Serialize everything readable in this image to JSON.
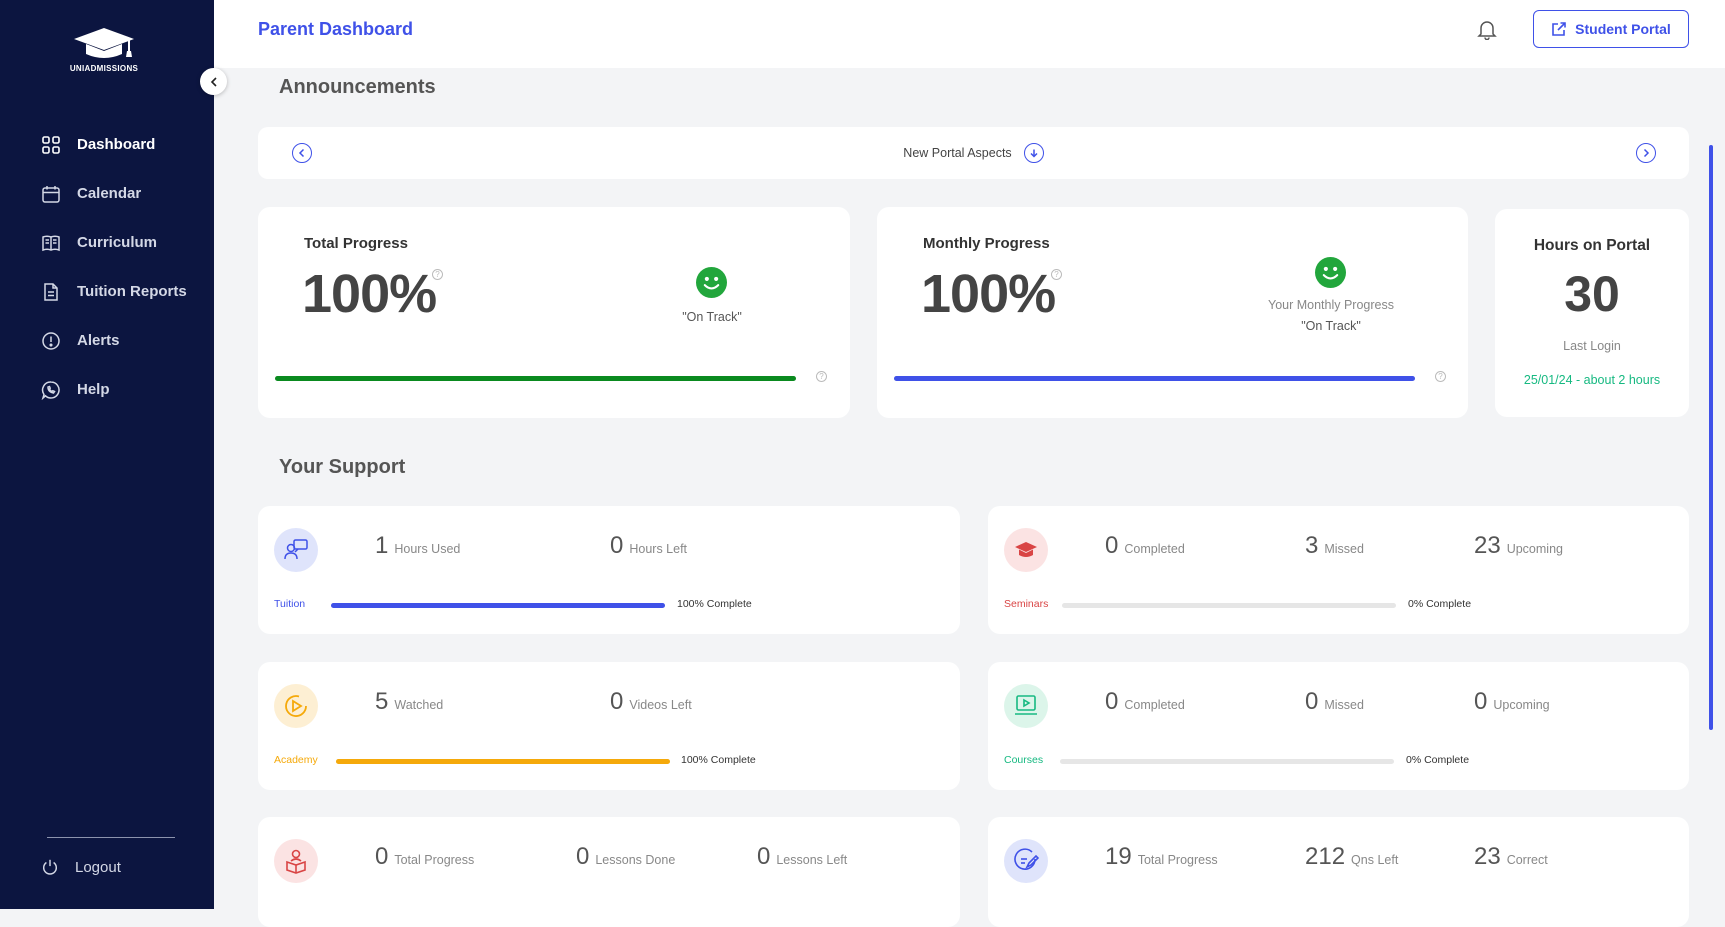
{
  "brand": {
    "logo_text": "UNIADMISSIONS"
  },
  "sidebar": {
    "items": [
      {
        "label": "Dashboard",
        "icon": "grid-icon",
        "active": true
      },
      {
        "label": "Calendar",
        "icon": "calendar-icon"
      },
      {
        "label": "Curriculum",
        "icon": "book-icon"
      },
      {
        "label": "Tuition Reports",
        "icon": "document-icon"
      },
      {
        "label": "Alerts",
        "icon": "alert-icon"
      },
      {
        "label": "Help",
        "icon": "whatsapp-icon"
      }
    ],
    "logout_label": "Logout"
  },
  "header": {
    "title": "Parent Dashboard",
    "portal_button": "Student Portal"
  },
  "announcements": {
    "title": "Announcements",
    "item": "New Portal Aspects"
  },
  "total_progress": {
    "label": "Total Progress",
    "value": "100%",
    "status": "\"On Track\"",
    "fill_fraction": 1.0,
    "bar_color": "#0a8a1f"
  },
  "monthly_progress": {
    "label": "Monthly Progress",
    "value": "100%",
    "caption": "Your Monthly Progress",
    "status": "\"On Track\"",
    "fill_fraction": 1.0,
    "bar_color": "#3f51e8"
  },
  "hours": {
    "label": "Hours on Portal",
    "value": "30",
    "last_login_label": "Last Login",
    "last_login_value": "25/01/24 - about 2 hours"
  },
  "support": {
    "title": "Your Support",
    "tuition": {
      "label": "Tuition",
      "stats": [
        {
          "num": "1",
          "lbl": "Hours Used"
        },
        {
          "num": "0",
          "lbl": "Hours Left"
        }
      ],
      "pct_label": "100% Complete",
      "fill_fraction": 1.0,
      "color": "#3f51e8"
    },
    "seminars": {
      "label": "Seminars",
      "stats": [
        {
          "num": "0",
          "lbl": "Completed"
        },
        {
          "num": "3",
          "lbl": "Missed"
        },
        {
          "num": "23",
          "lbl": "Upcoming"
        }
      ],
      "pct_label": "0% Complete",
      "fill_fraction": 0.0,
      "color": "#d94545"
    },
    "academy": {
      "label": "Academy",
      "stats": [
        {
          "num": "5",
          "lbl": "Watched"
        },
        {
          "num": "0",
          "lbl": "Videos Left"
        }
      ],
      "pct_label": "100% Complete",
      "fill_fraction": 1.0,
      "color": "#f5a90a"
    },
    "courses": {
      "label": "Courses",
      "stats": [
        {
          "num": "0",
          "lbl": "Completed"
        },
        {
          "num": "0",
          "lbl": "Missed"
        },
        {
          "num": "0",
          "lbl": "Upcoming"
        }
      ],
      "pct_label": "0% Complete",
      "fill_fraction": 0.0,
      "color": "#16b981"
    },
    "lessons": {
      "stats": [
        {
          "num": "0",
          "lbl": "Total Progress"
        },
        {
          "num": "0",
          "lbl": "Lessons Done"
        },
        {
          "num": "0",
          "lbl": "Lessons Left"
        }
      ],
      "color": "#d94545"
    },
    "questions": {
      "stats": [
        {
          "num": "19",
          "lbl": "Total Progress"
        },
        {
          "num": "212",
          "lbl": "Qns Left"
        },
        {
          "num": "23",
          "lbl": "Correct"
        }
      ],
      "color": "#3f51e8"
    }
  }
}
